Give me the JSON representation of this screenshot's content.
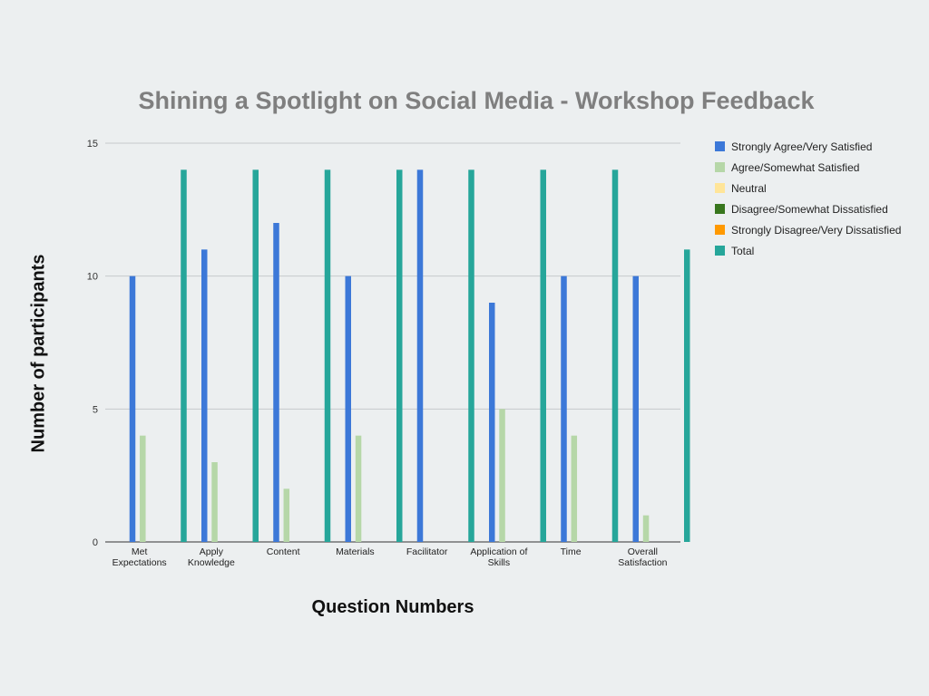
{
  "chart_data": {
    "type": "bar",
    "title": "Shining a Spotlight on Social Media - Workshop Feedback",
    "xlabel": "Question Numbers",
    "ylabel": "Number of participants",
    "categories": [
      [
        "Met",
        "Expectations"
      ],
      [
        "Apply",
        "Knowledge"
      ],
      [
        "Content"
      ],
      [
        "Materials"
      ],
      [
        "Facilitator"
      ],
      [
        "Application of",
        "Skills"
      ],
      [
        "Time"
      ],
      [
        "Overall",
        "Satisfaction"
      ]
    ],
    "series": [
      {
        "name": "Strongly Agree/Very Satisfied",
        "color": "#3c78d8",
        "values": [
          10,
          11,
          12,
          10,
          14,
          9,
          10,
          10
        ]
      },
      {
        "name": "Agree/Somewhat Satisfied",
        "color": "#b6d7a8",
        "values": [
          4,
          3,
          2,
          4,
          0,
          5,
          4,
          1
        ]
      },
      {
        "name": "Neutral",
        "color": "#ffe599",
        "values": [
          0,
          0,
          0,
          0,
          0,
          0,
          0,
          0
        ]
      },
      {
        "name": "Disagree/Somewhat Dissatisfied",
        "color": "#38761d",
        "values": [
          0,
          0,
          0,
          0,
          0,
          0,
          0,
          0
        ]
      },
      {
        "name": "Strongly Disagree/Very Dissatisfied",
        "color": "#ff9900",
        "values": [
          0,
          0,
          0,
          0,
          0,
          0,
          0,
          0
        ]
      },
      {
        "name": "Total",
        "color": "#26a69a",
        "values": [
          14,
          14,
          14,
          14,
          14,
          14,
          14,
          11
        ]
      }
    ],
    "ylim": [
      0,
      15
    ],
    "yticks": [
      0,
      5,
      10,
      15
    ],
    "grid": true,
    "legend_position": "right"
  }
}
